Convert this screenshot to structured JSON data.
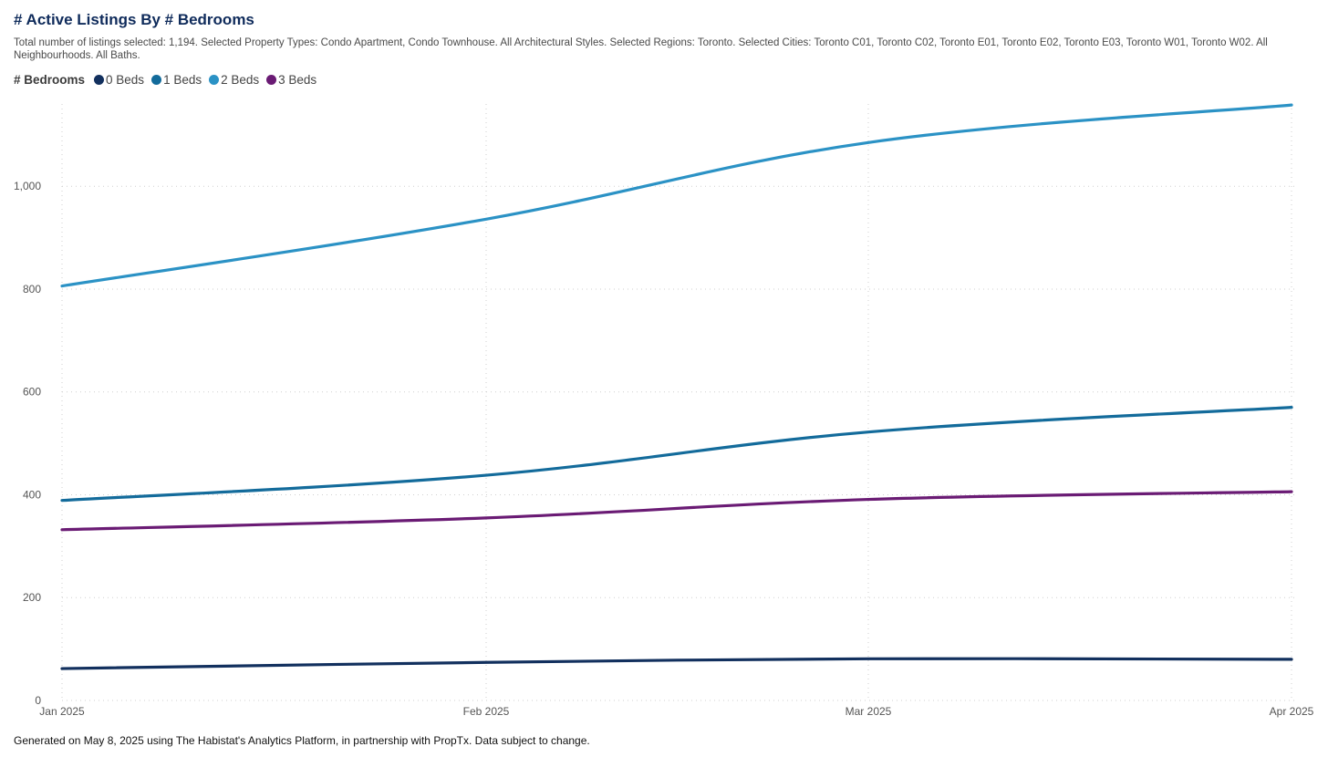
{
  "chart_data": {
    "type": "line",
    "title": "# Active Listings By # Bedrooms",
    "subtitle": "Total number of listings selected: 1,194. Selected Property Types: Condo Apartment, Condo Townhouse. All Architectural Styles. Selected Regions: Toronto. Selected Cities: Toronto C01, Toronto C02, Toronto E01, Toronto E02, Toronto E03, Toronto W01, Toronto W02. All Neighbourhoods. All Baths.",
    "legend_title": "# Bedrooms",
    "legend_position": "top-left",
    "x": [
      "Jan 2025",
      "Feb 2025",
      "Mar 2025",
      "Apr 2025"
    ],
    "ylim": [
      0,
      1160
    ],
    "yticks": [
      0,
      200,
      400,
      600,
      800,
      1000
    ],
    "ytick_labels": [
      "0",
      "200",
      "400",
      "600",
      "800",
      "1,000"
    ],
    "grid": true,
    "smooth": true,
    "series": [
      {
        "name": "0 Beds",
        "color": "#12305e",
        "values": [
          62,
          74,
          81,
          80
        ]
      },
      {
        "name": "1 Beds",
        "color": "#136b9b",
        "values": [
          389,
          438,
          522,
          570
        ]
      },
      {
        "name": "2 Beds",
        "color": "#2b92c5",
        "values": [
          806,
          936,
          1085,
          1158
        ]
      },
      {
        "name": "3 Beds",
        "color": "#6a1b74",
        "values": [
          332,
          355,
          391,
          406
        ]
      }
    ]
  },
  "footer": "Generated on May 8, 2025 using The Habistat's Analytics Platform, in partnership with PropTx. Data subject to change."
}
